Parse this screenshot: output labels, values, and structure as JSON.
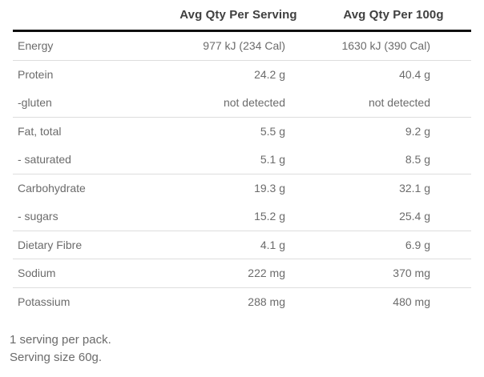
{
  "table": {
    "columns": {
      "label": "",
      "per_serving": "Avg Qty Per Serving",
      "per_100g": "Avg Qty Per 100g"
    },
    "rows": [
      {
        "label": "Energy",
        "per_serving": "977 kJ (234 Cal)",
        "per_100g": "1630 kJ (390 Cal)"
      },
      {
        "label": "Protein",
        "per_serving": "24.2 g",
        "per_100g": "40.4 g"
      },
      {
        "label": "-gluten",
        "per_serving": "not detected",
        "per_100g": "not detected"
      },
      {
        "label": "Fat, total",
        "per_serving": "5.5 g",
        "per_100g": "9.2 g"
      },
      {
        "label": "- saturated",
        "per_serving": "5.1 g",
        "per_100g": "8.5 g"
      },
      {
        "label": "Carbohydrate",
        "per_serving": "19.3 g",
        "per_100g": "32.1 g"
      },
      {
        "label": "- sugars",
        "per_serving": "15.2 g",
        "per_100g": "25.4 g"
      },
      {
        "label": "Dietary Fibre",
        "per_serving": "4.1 g",
        "per_100g": "6.9 g"
      },
      {
        "label": "Sodium",
        "per_serving": "222 mg",
        "per_100g": "370 mg"
      },
      {
        "label": "Potassium",
        "per_serving": "288 mg",
        "per_100g": "480 mg"
      }
    ]
  },
  "footer": {
    "line1": "1 serving per pack.",
    "line2": "Serving size 60g."
  },
  "colors": {
    "background": "#ffffff",
    "header_text": "#404040",
    "body_text": "#6b6b6b",
    "divider": "#dddddd",
    "header_rule": "#0f0f0f"
  }
}
